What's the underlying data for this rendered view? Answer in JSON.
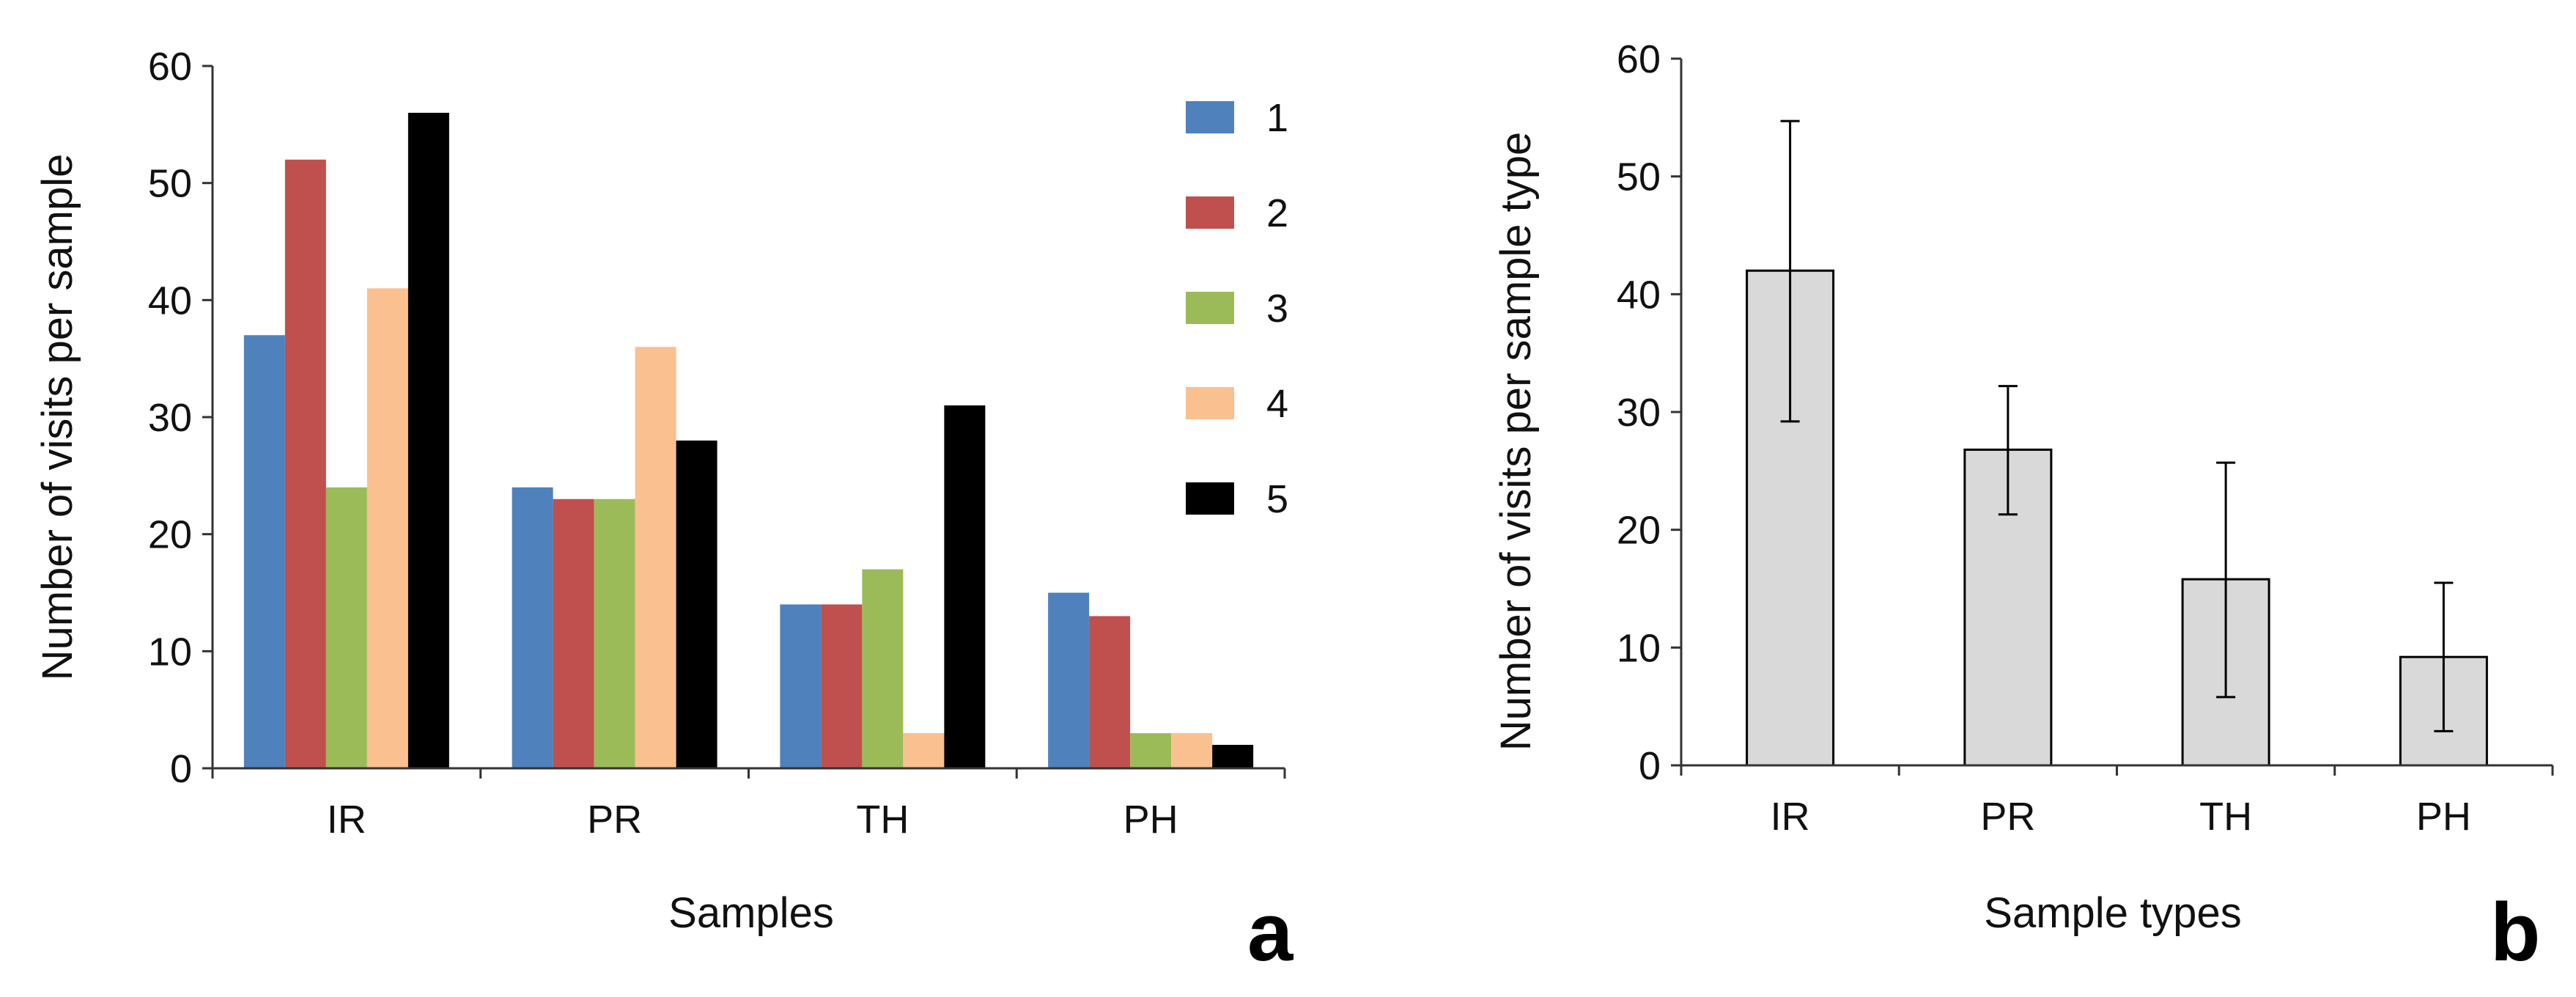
{
  "chart_data": [
    {
      "panel_label": "a",
      "type": "bar",
      "title": "",
      "xlabel": "Samples",
      "ylabel": "Number of visits per sample",
      "ylim": [
        0,
        60
      ],
      "yticks": [
        "0",
        "10",
        "20",
        "30",
        "40",
        "50",
        "60"
      ],
      "grid": false,
      "legend_position": "right",
      "categories": [
        "IR",
        "PR",
        "TH",
        "PH"
      ],
      "series": [
        {
          "name": "1",
          "color": "#4F81BD",
          "values": [
            37,
            24,
            14,
            15
          ]
        },
        {
          "name": "2",
          "color": "#C0504D",
          "values": [
            52,
            23,
            14,
            13
          ]
        },
        {
          "name": "3",
          "color": "#9BBB59",
          "values": [
            24,
            23,
            17,
            3
          ]
        },
        {
          "name": "4",
          "color": "#FAC090",
          "values": [
            41,
            36,
            3,
            3
          ]
        },
        {
          "name": "5",
          "color": "#000000",
          "values": [
            56,
            28,
            31,
            2
          ]
        }
      ]
    },
    {
      "panel_label": "b",
      "type": "bar",
      "title": "",
      "xlabel": "Sample types",
      "ylabel": "Number of visits per sample type",
      "ylim": [
        0,
        60
      ],
      "yticks": [
        "0",
        "10",
        "20",
        "30",
        "40",
        "50",
        "60"
      ],
      "grid": false,
      "categories": [
        "IR",
        "PR",
        "TH",
        "PH"
      ],
      "values": [
        42,
        26.8,
        15.8,
        9.2
      ],
      "error_low": [
        29.2,
        21.3,
        5.8,
        2.9
      ],
      "error_high": [
        54.7,
        32.2,
        25.7,
        15.5
      ],
      "bar_color": "#D9D9D9",
      "bar_edge_color": "#000000"
    }
  ]
}
